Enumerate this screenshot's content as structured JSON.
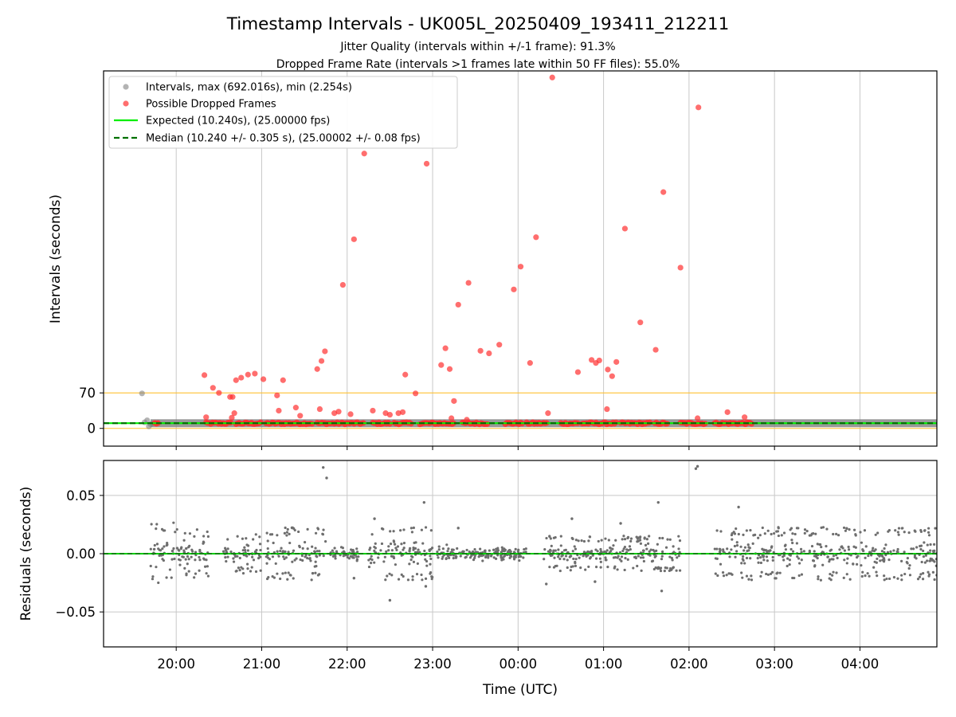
{
  "figure": {
    "title": "Timestamp Intervals - UK005L_20250409_193411_212211",
    "subtitle_1": "Jitter Quality (intervals within +/-1 frame): 91.3%",
    "subtitle_2": "Dropped Frame Rate (intervals >1 frames late within 50 FF files): 55.0%"
  },
  "chart_data": [
    {
      "type": "scatter",
      "panel": "intervals",
      "ylabel": "Intervals (seconds)",
      "yticks": [
        0,
        70
      ],
      "ylim": [
        -35,
        705
      ],
      "x_unit": "hours since 19:00 UTC (values >24 are next day)",
      "xlim": [
        19.15,
        28.9
      ],
      "grid": true,
      "legend_position": "upper-left",
      "legend": [
        {
          "label": "Intervals, max (692.016s), min (2.254s)",
          "kind": "gray-dot"
        },
        {
          "label": "Possible Dropped Frames",
          "kind": "red-dot"
        },
        {
          "label": "Expected (10.240s), (25.00000 fps)",
          "kind": "green-line"
        },
        {
          "label": "Median (10.240 +/- 0.305 s), (25.00002 +/- 0.08 fps)",
          "kind": "dashed-dark-green-line"
        }
      ],
      "reference_lines": {
        "expected": 10.24,
        "median": 10.24,
        "threshold": 70
      },
      "colors": {
        "intervals": "#808080",
        "dropped": "#ff3030",
        "expected": "#00ee00",
        "median": "#007000",
        "threshold": "#ffc030"
      },
      "intervals_series": {
        "name": "Intervals",
        "x": [
          19.6,
          19.63,
          19.66,
          19.68,
          19.7,
          19.72
        ],
        "y": [
          69,
          12,
          16,
          4,
          8,
          10
        ]
      },
      "dropped_series": {
        "name": "Possible Dropped Frames",
        "x": [
          20.33,
          20.43,
          20.5,
          20.63,
          20.66,
          20.7,
          20.76,
          20.84,
          20.92,
          21.02,
          21.18,
          21.25,
          21.4,
          21.65,
          21.7,
          21.74,
          21.95,
          22.08,
          22.2,
          22.68,
          22.8,
          22.93,
          23.1,
          23.15,
          23.2,
          23.25,
          23.3,
          23.42,
          23.56,
          23.66,
          23.78,
          23.95,
          24.03,
          24.14,
          24.21,
          24.4,
          24.7,
          24.86,
          24.91,
          24.95,
          25.05,
          25.1,
          25.15,
          25.25,
          25.43,
          25.61,
          25.7,
          25.9,
          26.11,
          20.35,
          20.65,
          20.68,
          21.2,
          21.45,
          21.68,
          21.85,
          21.9,
          22.04,
          22.3,
          22.45,
          22.5,
          22.6,
          22.65,
          23.22,
          23.4,
          24.35,
          25.04,
          26.1,
          26.45,
          26.65
        ],
        "y": [
          105,
          80,
          70,
          62,
          62,
          95,
          100,
          106,
          108,
          97,
          65,
          95,
          41,
          117,
          133,
          152,
          283,
          373,
          542,
          106,
          69,
          522,
          125,
          158,
          117,
          54,
          244,
          287,
          153,
          148,
          165,
          274,
          319,
          129,
          377,
          692,
          111,
          135,
          129,
          134,
          116,
          103,
          131,
          394,
          209,
          155,
          466,
          317,
          633,
          22,
          21,
          30,
          35,
          25,
          38,
          30,
          33,
          28,
          35,
          30,
          27,
          30,
          32,
          20,
          17,
          30,
          38,
          20,
          32,
          22
        ]
      },
      "dropped_baseline": {
        "description": "dense band of dropped-frame intervals at ~10 s",
        "segments": [
          [
            19.75,
            19.8
          ],
          [
            20.35,
            20.65
          ],
          [
            20.7,
            21.0
          ],
          [
            21.05,
            21.6
          ],
          [
            21.65,
            22.2
          ],
          [
            22.3,
            22.5
          ],
          [
            22.55,
            22.75
          ],
          [
            22.85,
            23.25
          ],
          [
            23.35,
            23.65
          ],
          [
            23.85,
            24.05
          ],
          [
            24.1,
            24.35
          ],
          [
            24.5,
            24.7
          ],
          [
            24.75,
            25.15
          ],
          [
            25.2,
            25.55
          ],
          [
            25.6,
            25.75
          ],
          [
            25.9,
            26.2
          ],
          [
            26.3,
            26.75
          ]
        ]
      },
      "dense_interval_band": {
        "x_range": [
          19.7,
          28.9
        ],
        "y_range": [
          2.3,
          18
        ]
      }
    },
    {
      "type": "scatter",
      "panel": "residuals",
      "xlabel": "Time (UTC)",
      "ylabel": "Residuals (seconds)",
      "yticks": [
        -0.05,
        0.0,
        0.05
      ],
      "ytick_labels": [
        "−0.05",
        "0.00",
        "0.05"
      ],
      "ylim": [
        -0.08,
        0.08
      ],
      "xticks": [
        20,
        21,
        22,
        23,
        24,
        25,
        26,
        27,
        28
      ],
      "xtick_labels": [
        "20:00",
        "21:00",
        "22:00",
        "23:00",
        "00:00",
        "01:00",
        "02:00",
        "03:00",
        "04:00"
      ],
      "xlim": [
        19.15,
        28.9
      ],
      "grid": true,
      "colors": {
        "points": "#6e6e6e",
        "zero_line": "#00cc00",
        "zero_dash": "#007000"
      },
      "outliers": {
        "x": [
          21.72,
          21.76,
          22.08,
          22.32,
          22.5,
          22.92,
          22.9,
          24.33,
          24.63,
          24.9,
          25.64,
          25.68,
          26.08,
          26.1,
          26.58,
          26.7,
          23.3,
          25.2
        ],
        "y": [
          0.074,
          0.065,
          -0.021,
          0.03,
          -0.04,
          -0.028,
          0.044,
          -0.026,
          0.03,
          -0.024,
          0.044,
          -0.032,
          0.073,
          0.075,
          0.04,
          -0.022,
          0.022,
          0.026
        ]
      },
      "dense_clusters": [
        {
          "x_range": [
            19.7,
            20.1
          ],
          "y_spread": 0.028
        },
        {
          "x_range": [
            20.1,
            20.4
          ],
          "y_spread": 0.022
        },
        {
          "x_range": [
            20.55,
            21.0
          ],
          "y_spread": 0.018
        },
        {
          "x_range": [
            21.05,
            21.75
          ],
          "y_spread": 0.024
        },
        {
          "x_range": [
            21.8,
            22.15
          ],
          "y_spread": 0.012
        },
        {
          "x_range": [
            22.25,
            23.0
          ],
          "y_spread": 0.024
        },
        {
          "x_range": [
            23.05,
            24.1
          ],
          "y_spread": 0.012
        },
        {
          "x_range": [
            24.3,
            25.9
          ],
          "y_spread": 0.016
        },
        {
          "x_range": [
            26.3,
            28.9
          ],
          "y_spread": 0.024
        }
      ]
    }
  ]
}
